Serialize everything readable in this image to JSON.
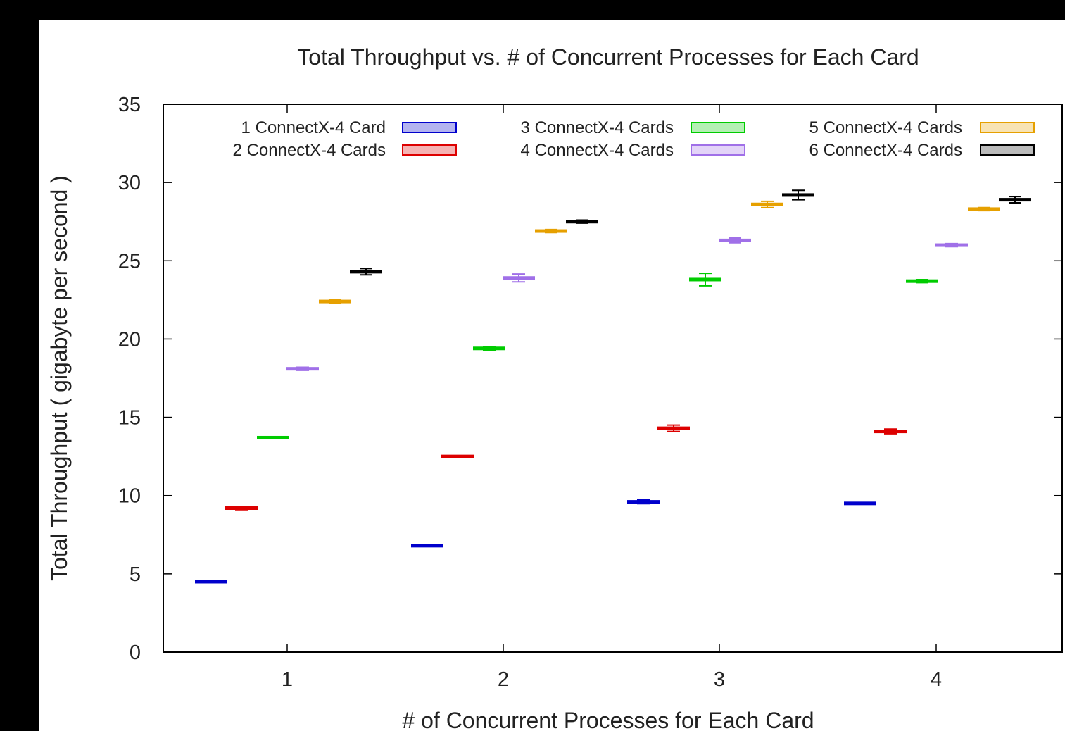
{
  "chart_data": {
    "type": "bar",
    "title": "Total Throughput vs. # of Concurrent Processes for Each Card",
    "xlabel": "# of Concurrent Processes for Each Card",
    "ylabel": "Total Throughput ( gigabyte per second )",
    "categories": [
      "1",
      "2",
      "3",
      "4"
    ],
    "ylim": [
      0,
      35
    ],
    "yticks": [
      "0",
      "5",
      "10",
      "15",
      "20",
      "25",
      "30",
      "35"
    ],
    "grid": false,
    "legend_position": "top",
    "series": [
      {
        "name": "1 ConnectX-4 Card",
        "color": "#0000cc",
        "values": [
          4.5,
          6.8,
          9.6,
          9.5
        ],
        "errors": [
          0.05,
          0.05,
          0.12,
          0.08
        ]
      },
      {
        "name": "2 ConnectX-4 Cards",
        "color": "#dd0000",
        "values": [
          9.2,
          12.5,
          14.3,
          14.1
        ],
        "errors": [
          0.1,
          0.05,
          0.2,
          0.15
        ]
      },
      {
        "name": "3 ConnectX-4 Cards",
        "color": "#00cc00",
        "values": [
          13.7,
          19.4,
          23.8,
          23.7
        ],
        "errors": [
          0.05,
          0.1,
          0.4,
          0.1
        ]
      },
      {
        "name": "4 ConnectX-4 Cards",
        "color": "#a070e8",
        "values": [
          18.1,
          23.9,
          26.3,
          26.0
        ],
        "errors": [
          0.1,
          0.25,
          0.15,
          0.1
        ]
      },
      {
        "name": "5 ConnectX-4 Cards",
        "color": "#e6a000",
        "values": [
          22.4,
          26.9,
          28.6,
          28.3
        ],
        "errors": [
          0.1,
          0.1,
          0.2,
          0.1
        ]
      },
      {
        "name": "6 ConnectX-4 Cards",
        "color": "#000000",
        "values": [
          24.3,
          27.5,
          29.2,
          28.9
        ],
        "errors": [
          0.2,
          0.1,
          0.3,
          0.2
        ]
      }
    ]
  }
}
